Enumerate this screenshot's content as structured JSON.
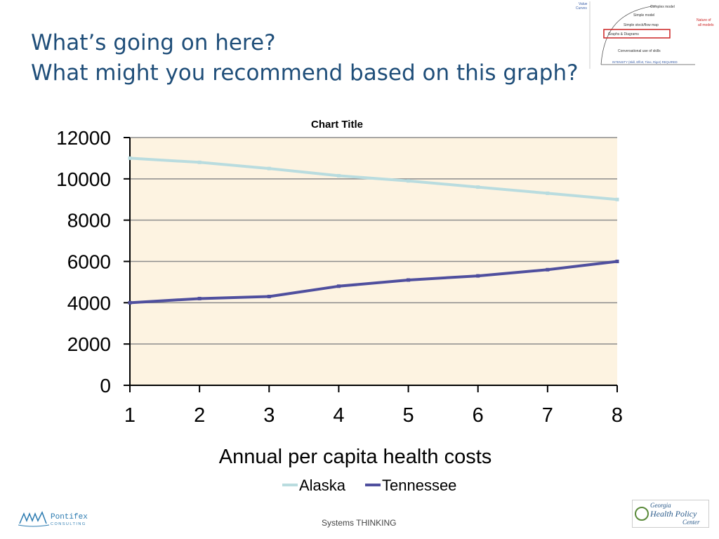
{
  "slide": {
    "title_line1": "What’s going on here?",
    "title_line2": "What might you recommend based on this graph?"
  },
  "footer": {
    "text": "Systems THINKING"
  },
  "logos": {
    "left": "Pontifex",
    "left_sub": "CONSULTING",
    "right_line1": "Georgia",
    "right_line2": "Health Policy",
    "right_line3": "Center"
  },
  "thumbnail": {
    "top_label_1": "Value",
    "top_label_2": "Curves",
    "items": [
      "Complex model",
      "Simple model",
      "Simple stock/flow map",
      "Graphs & Diagrams",
      "Conversational use of skills"
    ],
    "side_label_1": "Nature of",
    "side_label_2": "all models",
    "bottom": "INTENSITY (Skill, Effort, Time, Rigor) REQUIRED"
  },
  "colors": {
    "plot_bg": "#fdf3e1",
    "alaska": "#b9dcdf",
    "tennessee": "#4f4f9e",
    "title": "#1f4e79"
  },
  "chart_data": {
    "type": "line",
    "title": "Chart Title",
    "xlabel": "Annual per capita health costs",
    "ylabel": "",
    "x": [
      1,
      2,
      3,
      4,
      5,
      6,
      7,
      8
    ],
    "ylim": [
      0,
      12000
    ],
    "yticks": [
      0,
      2000,
      4000,
      6000,
      8000,
      10000,
      12000
    ],
    "grid": true,
    "legend": "bottom",
    "series": [
      {
        "name": "Alaska",
        "values": [
          11000,
          10800,
          10500,
          10150,
          9900,
          9600,
          9300,
          9000
        ],
        "color": "#b9dcdf"
      },
      {
        "name": "Tennessee",
        "values": [
          4000,
          4200,
          4300,
          4800,
          5100,
          5300,
          5600,
          6000
        ],
        "color": "#4f4f9e"
      }
    ]
  }
}
